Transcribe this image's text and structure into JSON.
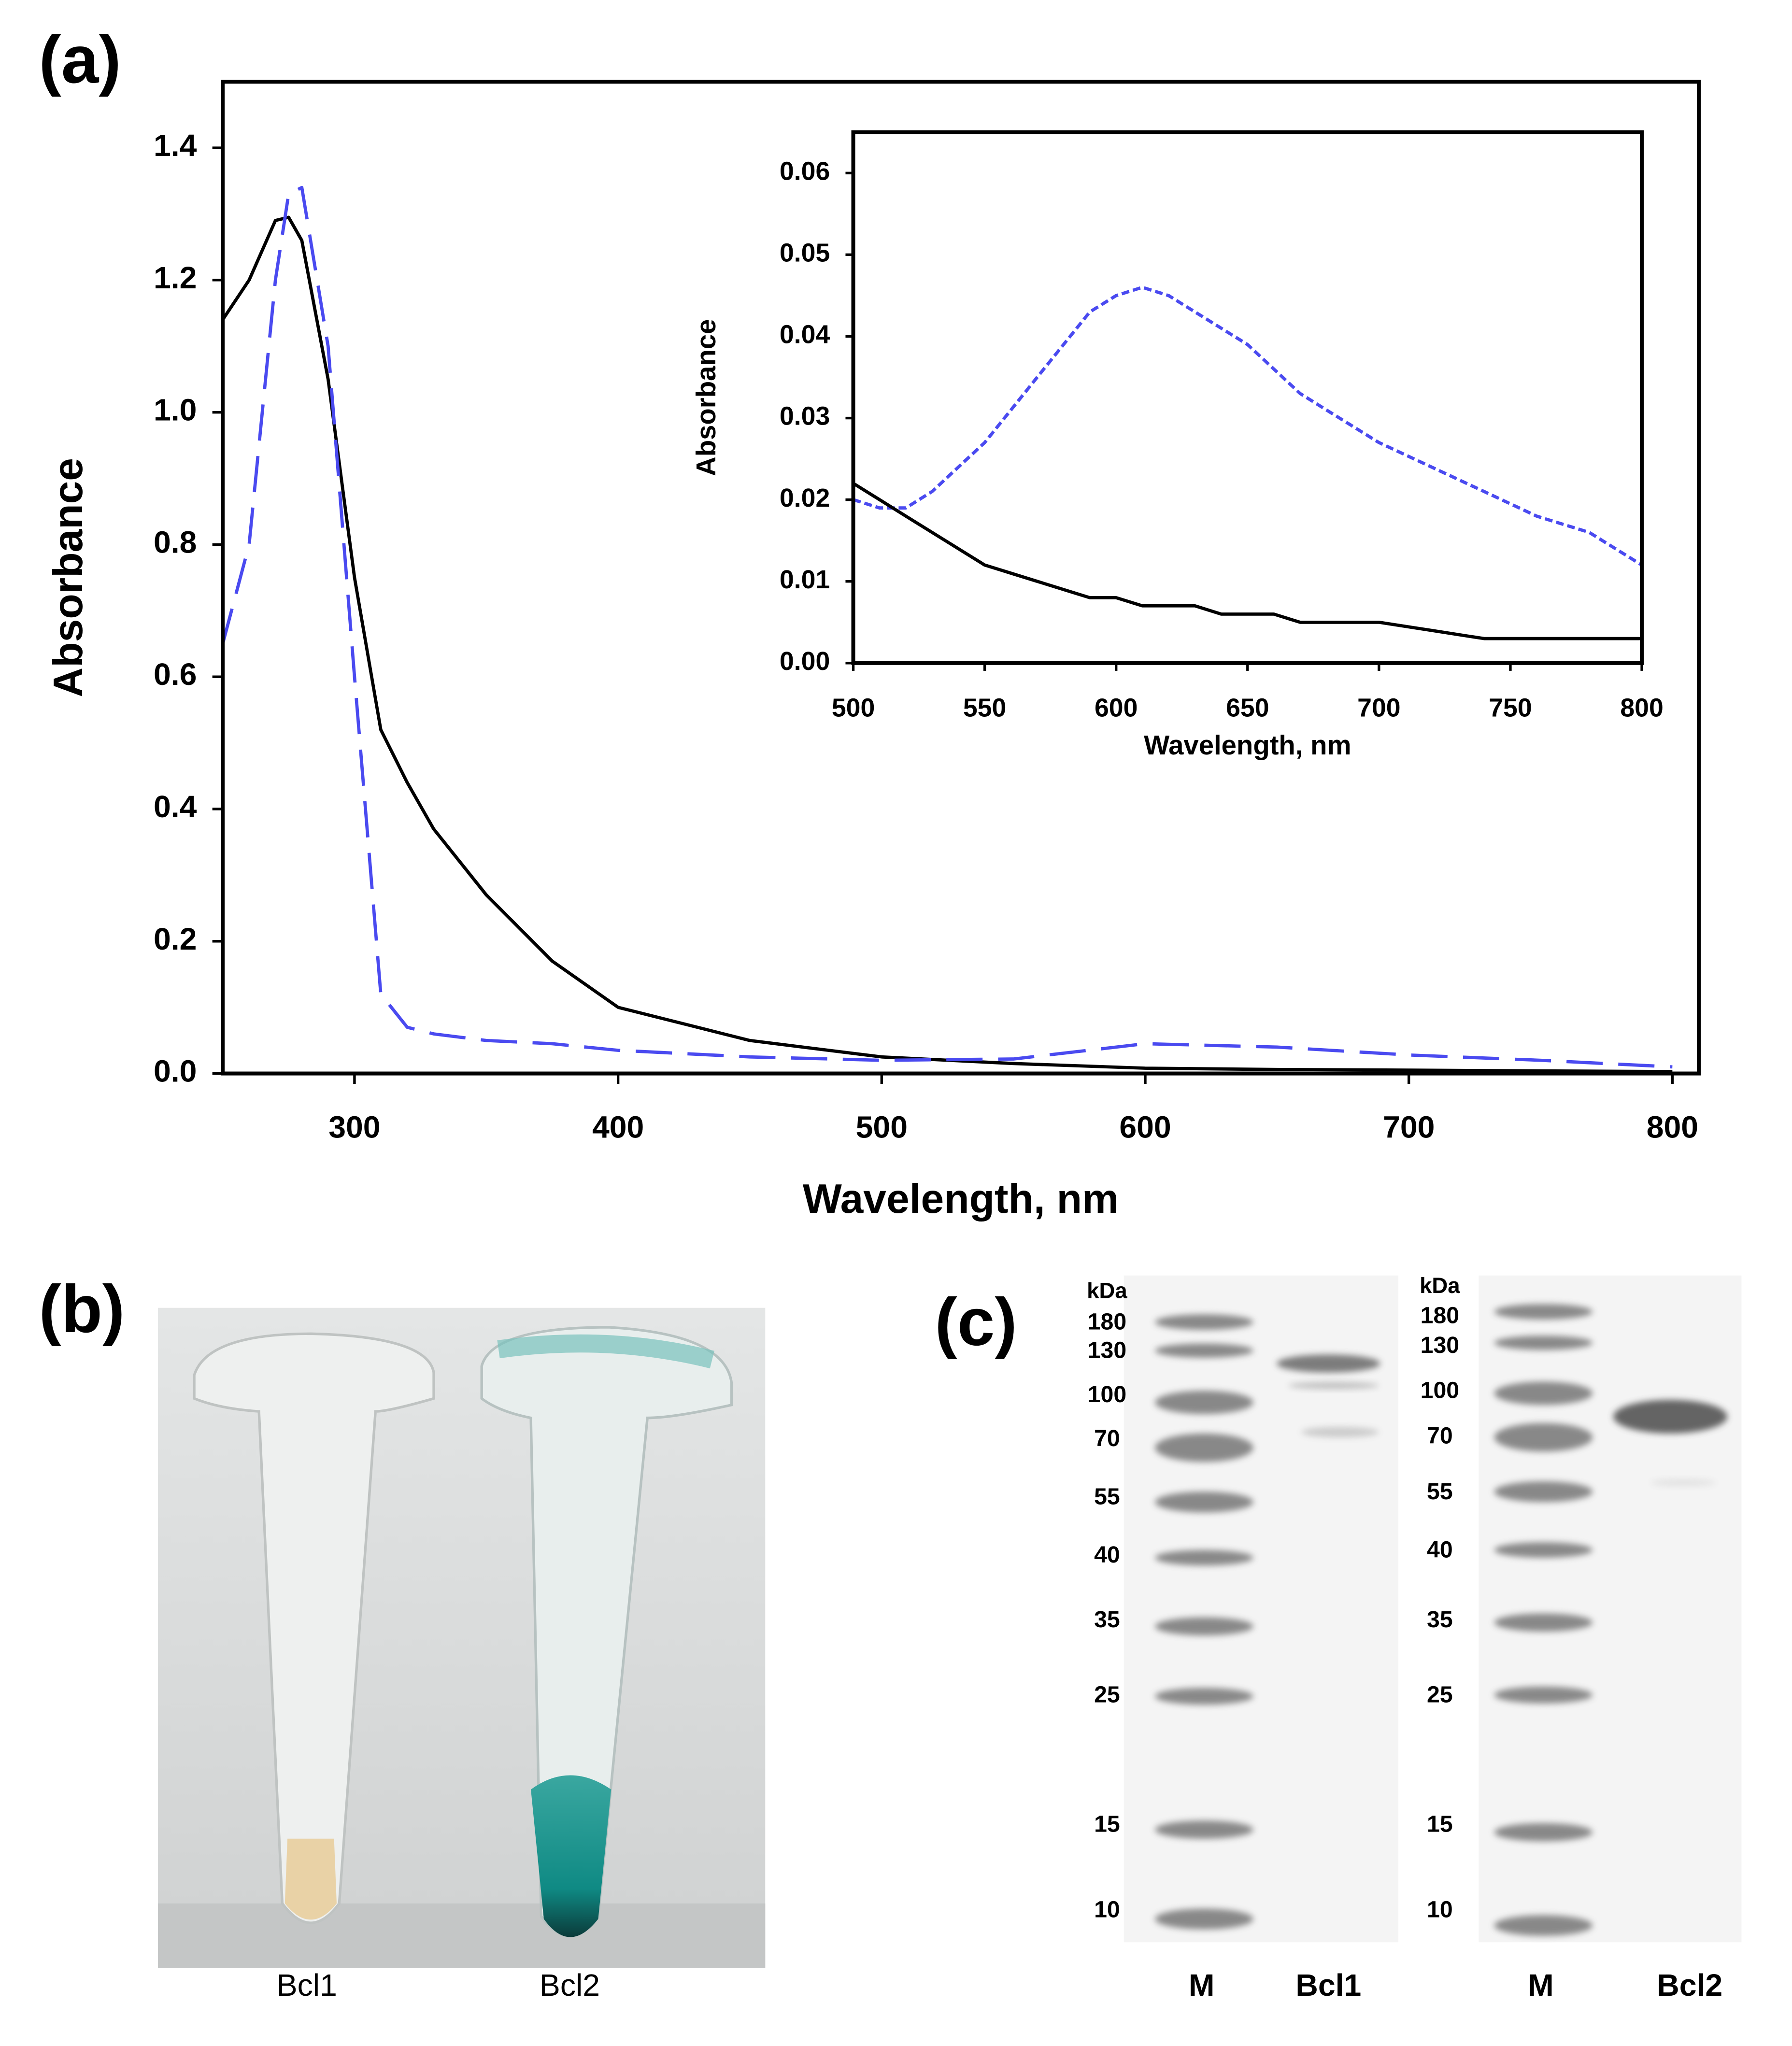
{
  "chart_data": [
    {
      "type": "line",
      "panel_label": "(a)",
      "x_label": "Wavelength, nm",
      "y_label": "Absorbance",
      "x": [
        250,
        260,
        270,
        275,
        280,
        290,
        300,
        310,
        320,
        330,
        350,
        375,
        400,
        450,
        500,
        550,
        600,
        650,
        700,
        750,
        800
      ],
      "series": [
        {
          "color": "#000000",
          "dash": false,
          "values": [
            1.14,
            1.2,
            1.29,
            1.295,
            1.26,
            1.05,
            0.75,
            0.52,
            0.44,
            0.37,
            0.27,
            0.17,
            0.1,
            0.05,
            0.025,
            0.015,
            0.008,
            0.006,
            0.005,
            0.004,
            0.003
          ]
        },
        {
          "color": "#4a4af0",
          "dash": true,
          "values": [
            0.65,
            0.8,
            1.2,
            1.33,
            1.34,
            1.1,
            0.6,
            0.12,
            0.07,
            0.06,
            0.05,
            0.045,
            0.035,
            0.025,
            0.02,
            0.022,
            0.045,
            0.04,
            0.028,
            0.02,
            0.01
          ]
        }
      ],
      "xlim": [
        250,
        810
      ],
      "xticks": [
        300,
        400,
        500,
        600,
        700,
        800
      ],
      "ylim": [
        0,
        1.5
      ],
      "yticks": [
        {
          "value": 0,
          "label": "0.0"
        },
        0.2,
        0.4,
        0.6,
        0.8,
        {
          "value": 1,
          "label": "1.0"
        },
        1.2,
        1.4
      ]
    },
    {
      "type": "line",
      "x_label": "Wavelength, nm",
      "y_label": "Absorbance",
      "x": [
        500,
        510,
        520,
        530,
        540,
        550,
        560,
        570,
        580,
        590,
        600,
        610,
        620,
        630,
        640,
        650,
        660,
        670,
        680,
        690,
        700,
        720,
        740,
        760,
        780,
        800
      ],
      "series": [
        {
          "color": "#4a4af0",
          "dash": true,
          "values": [
            0.02,
            0.019,
            0.019,
            0.021,
            0.024,
            0.027,
            0.031,
            0.035,
            0.039,
            0.043,
            0.045,
            0.046,
            0.045,
            0.043,
            0.041,
            0.039,
            0.036,
            0.033,
            0.031,
            0.029,
            0.027,
            0.024,
            0.021,
            0.018,
            0.016,
            0.012
          ]
        },
        {
          "color": "#000000",
          "dash": false,
          "values": [
            0.022,
            0.02,
            0.018,
            0.016,
            0.014,
            0.012,
            0.011,
            0.01,
            0.009,
            0.008,
            0.008,
            0.007,
            0.007,
            0.007,
            0.006,
            0.006,
            0.006,
            0.005,
            0.005,
            0.005,
            0.005,
            0.004,
            0.003,
            0.003,
            0.003,
            0.003
          ]
        }
      ],
      "xlim": [
        500,
        800
      ],
      "xticks": [
        500,
        550,
        600,
        650,
        700,
        750,
        800
      ],
      "ylim": [
        0,
        0.065
      ],
      "yticks": [
        {
          "value": 0,
          "label": "0.00"
        },
        0.01,
        0.02,
        0.03,
        0.04,
        0.05,
        0.06
      ]
    }
  ],
  "photo": {
    "panel_label": "(b)",
    "tubes": [
      "Bcl1",
      "Bcl2"
    ]
  },
  "gels": {
    "panel_label": "(c)",
    "items": [
      {
        "unit": "kDa",
        "markers": [
          "180",
          "130",
          "100",
          "70",
          "55",
          "40",
          "35",
          "25",
          "15",
          "10"
        ],
        "lanes": [
          "M",
          "Bcl1"
        ]
      },
      {
        "unit": "kDa",
        "markers": [
          "180",
          "130",
          "100",
          "70",
          "55",
          "40",
          "35",
          "25",
          "15",
          "10"
        ],
        "lanes": [
          "M",
          "Bcl2"
        ]
      }
    ]
  }
}
